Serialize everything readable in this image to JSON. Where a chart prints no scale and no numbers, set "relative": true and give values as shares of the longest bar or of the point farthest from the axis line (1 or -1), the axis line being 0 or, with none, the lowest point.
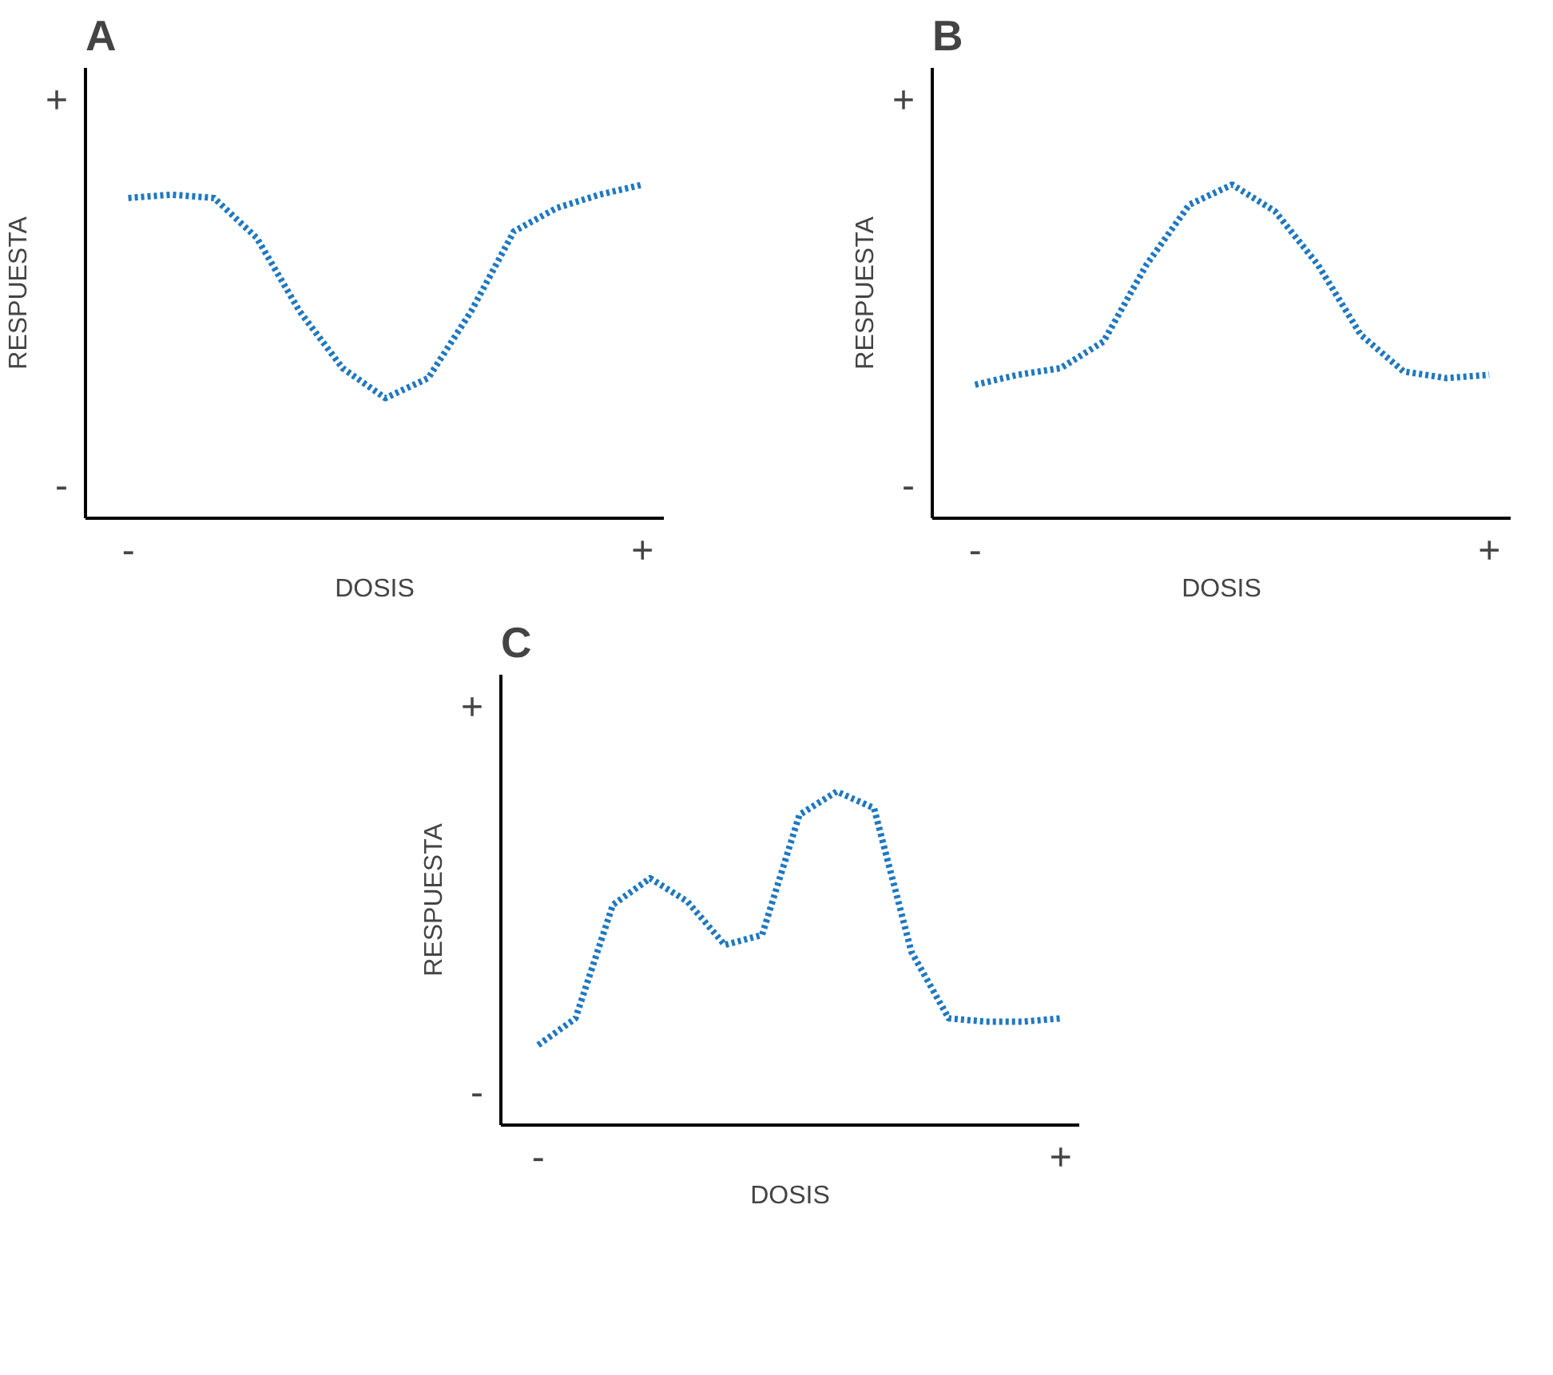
{
  "chart_data": [
    {
      "type": "line",
      "title": "A",
      "xlabel": "DOSIS",
      "ylabel": "RESPUESTA",
      "relative": true,
      "line_style": "dotted",
      "grid": false,
      "categories": [
        "-",
        null,
        null,
        null,
        null,
        null,
        null,
        null,
        null,
        null,
        null,
        null,
        "+"
      ],
      "series": [
        {
          "color": "#1f78c1",
          "values": [
            0.96,
            0.97,
            0.96,
            0.84,
            0.62,
            0.45,
            0.36,
            0.42,
            0.62,
            0.86,
            0.93,
            0.97,
            1
          ]
        }
      ],
      "annotations": [
        "+",
        "-"
      ]
    },
    {
      "type": "line",
      "title": "B",
      "xlabel": "DOSIS",
      "ylabel": "RESPUESTA",
      "relative": true,
      "line_style": "dotted",
      "grid": false,
      "categories": [
        "-",
        null,
        null,
        null,
        null,
        null,
        null,
        null,
        null,
        null,
        null,
        null,
        "+"
      ],
      "series": [
        {
          "color": "#1f78c1",
          "values": [
            0.4,
            0.43,
            0.45,
            0.53,
            0.76,
            0.94,
            1,
            0.92,
            0.76,
            0.55,
            0.44,
            0.42,
            0.43
          ]
        }
      ],
      "annotations": [
        "+",
        "-"
      ]
    },
    {
      "type": "line",
      "title": "C",
      "xlabel": "DOSIS",
      "ylabel": "RESPUESTA",
      "relative": true,
      "line_style": "dotted",
      "grid": false,
      "categories": [
        "-",
        null,
        null,
        null,
        null,
        null,
        null,
        null,
        null,
        null,
        null,
        null,
        null,
        null,
        "+"
      ],
      "series": [
        {
          "color": "#1f78c1",
          "values": [
            0.24,
            0.32,
            0.66,
            0.74,
            0.67,
            0.54,
            0.57,
            0.93,
            1,
            0.95,
            0.52,
            0.32,
            0.31,
            0.31,
            0.32
          ]
        }
      ],
      "annotations": [
        "+",
        "-"
      ]
    }
  ]
}
